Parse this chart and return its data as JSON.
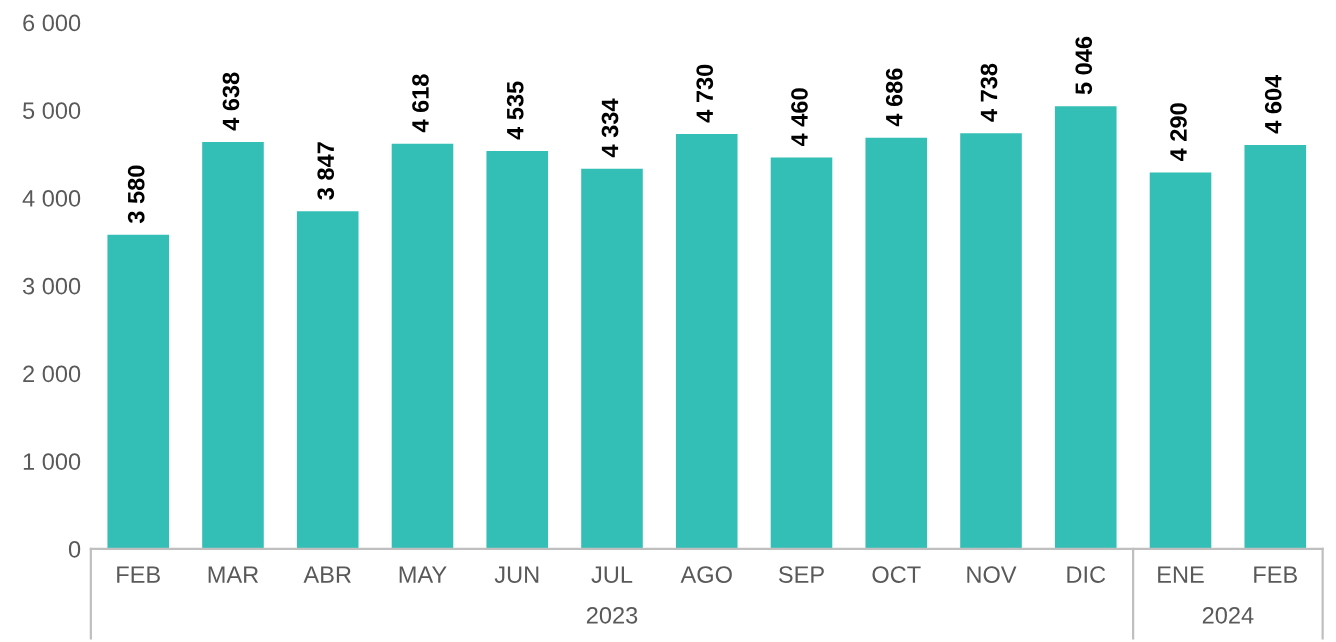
{
  "chart_data": {
    "type": "bar",
    "categories": [
      "FEB",
      "MAR",
      "ABR",
      "MAY",
      "JUN",
      "JUL",
      "AGO",
      "SEP",
      "OCT",
      "NOV",
      "DIC",
      "ENE",
      "FEB"
    ],
    "values": [
      3580,
      4638,
      3847,
      4618,
      4535,
      4334,
      4730,
      4460,
      4686,
      4738,
      5046,
      4290,
      4604
    ],
    "color": "#33bfb5",
    "ylim": [
      0,
      6000
    ],
    "yticks": [
      {
        "value": 0,
        "label": "0"
      },
      {
        "value": 1000,
        "label": "1 000"
      },
      {
        "value": 2000,
        "label": "2 000"
      },
      {
        "value": 3000,
        "label": "3 000"
      },
      {
        "value": 4000,
        "label": "4 000"
      },
      {
        "value": 5000,
        "label": "5 000"
      },
      {
        "value": 6000,
        "label": "6 000"
      }
    ],
    "data_labels": true,
    "grid": false,
    "legend": false,
    "annotations": [
      "2023",
      "2024"
    ]
  }
}
